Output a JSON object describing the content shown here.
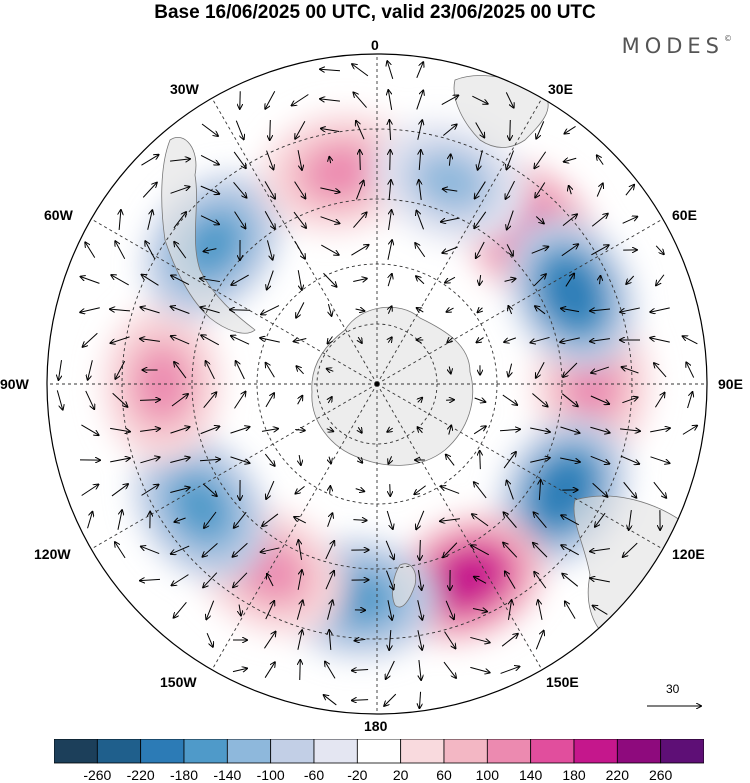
{
  "title": "Base 16/06/2025 00 UTC, valid 23/06/2025 00 UTC",
  "brand": "MODES",
  "brand_mark": "©",
  "longitude_labels": {
    "lon0": "0",
    "lon30e": "30E",
    "lon60e": "60E",
    "lon90e": "90E",
    "lon120e": "120E",
    "lon150e": "150E",
    "lon180": "180",
    "lon150w": "150W",
    "lon120w": "120W",
    "lon90w": "90W",
    "lon60w": "60W",
    "lon30w": "30W"
  },
  "vector_scale": {
    "label": "30"
  },
  "colorbar": {
    "ticks": [
      "-260",
      "-220",
      "-180",
      "-140",
      "-100",
      "-60",
      "-20",
      "20",
      "60",
      "100",
      "140",
      "180",
      "220",
      "260"
    ],
    "colors": [
      "#1c3f5a",
      "#1f5f8c",
      "#2c7bb6",
      "#4f9ac9",
      "#8eb8dc",
      "#c2cfe6",
      "#e4e6f2",
      "#ffffff",
      "#f9dade",
      "#f3b7c4",
      "#ec8ab0",
      "#e14e9d",
      "#c5178c",
      "#8e0a7d",
      "#5e0f76"
    ]
  },
  "chart_data": {
    "type": "heatmap",
    "projection": "south polar stereographic",
    "field": "anomaly with wind vectors",
    "anomaly_centers": [
      {
        "lon": 90,
        "sign": "positive",
        "peak": 140
      },
      {
        "lon": 45,
        "sign": "positive",
        "peak": 180
      },
      {
        "lon": 65,
        "sign": "negative",
        "peak": -220
      },
      {
        "lon": 120,
        "sign": "negative",
        "peak": -220
      },
      {
        "lon": 155,
        "sign": "positive",
        "peak": 220
      },
      {
        "lon": -175,
        "sign": "negative",
        "peak": -180
      },
      {
        "lon": -150,
        "sign": "positive",
        "peak": 140
      },
      {
        "lon": -125,
        "sign": "negative",
        "peak": -180
      },
      {
        "lon": -90,
        "sign": "positive",
        "peak": 140
      },
      {
        "lon": -50,
        "sign": "negative",
        "peak": -180
      },
      {
        "lon": -10,
        "sign": "positive",
        "peak": 140
      },
      {
        "lon": 20,
        "sign": "negative",
        "peak": -140
      }
    ],
    "colorbar_range": [
      -260,
      260
    ]
  }
}
